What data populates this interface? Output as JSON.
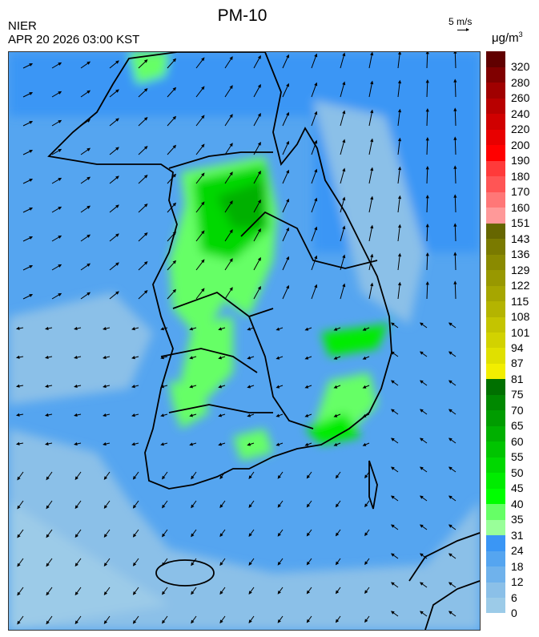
{
  "title": "PM-10",
  "agency": "NIER",
  "datetime": "APR 20 2026 03:00 KST",
  "wind_reference": {
    "label": "5 m/s",
    "icon": "arrow-right-icon"
  },
  "unit": {
    "base": "μg/m",
    "exp": "3"
  },
  "legend": {
    "levels": [
      "0",
      "6",
      "12",
      "18",
      "24",
      "31",
      "35",
      "40",
      "45",
      "50",
      "55",
      "60",
      "65",
      "70",
      "75",
      "81",
      "87",
      "94",
      "101",
      "108",
      "115",
      "122",
      "129",
      "136",
      "143",
      "151",
      "160",
      "170",
      "180",
      "190",
      "200",
      "220",
      "240",
      "260",
      "280",
      "320"
    ],
    "colors": [
      "#9ccbe8",
      "#8bc0e8",
      "#6fb2ec",
      "#55a5f0",
      "#3a96f5",
      "#99ff99",
      "#66ff66",
      "#00ff00",
      "#00ec00",
      "#00d800",
      "#00c400",
      "#00b000",
      "#009c00",
      "#008800",
      "#007000",
      "#f2ee00",
      "#e0e000",
      "#d2d200",
      "#c4c400",
      "#b4b400",
      "#a6a600",
      "#989800",
      "#8a8a00",
      "#7a7a00",
      "#666600",
      "#ff9999",
      "#ff7777",
      "#ff5555",
      "#ff3a3a",
      "#ff0000",
      "#e80000",
      "#d00000",
      "#b80000",
      "#a00000",
      "#800000",
      "#600000"
    ]
  }
}
